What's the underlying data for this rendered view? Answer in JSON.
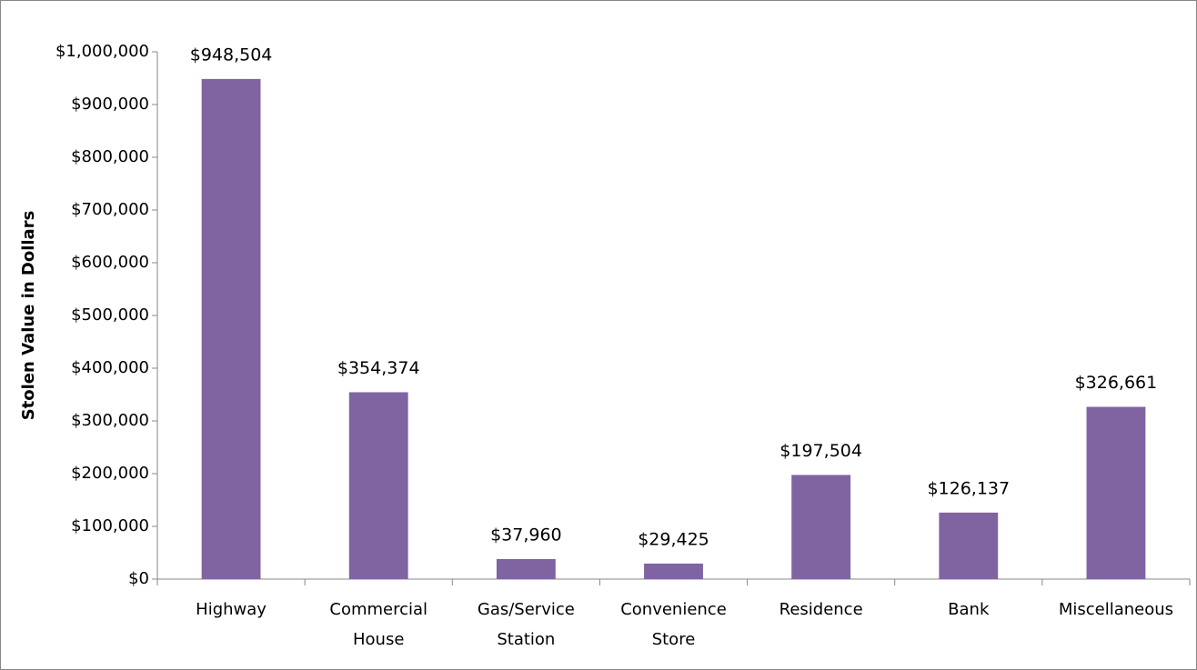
{
  "chart_data": {
    "type": "bar",
    "y_label": "Stolen Value in Dollars",
    "categories": [
      "Highway",
      "Commercial House",
      "Gas/Service Station",
      "Convenience Store",
      "Residence",
      "Bank",
      "Miscellaneous"
    ],
    "values": [
      948504,
      354374,
      37960,
      29425,
      197504,
      126137,
      326661
    ],
    "value_labels": [
      "$948,504",
      "$354,374",
      "$37,960",
      "$29,425",
      "$197,504",
      "$126,137",
      "$326,661"
    ],
    "color": "#8064a2",
    "ylim": [
      0,
      1000000
    ],
    "yticks": [
      {
        "value": 0,
        "label": "$0"
      },
      {
        "value": 100000,
        "label": "$100,000"
      },
      {
        "value": 200000,
        "label": "$200,000"
      },
      {
        "value": 300000,
        "label": "$300,000"
      },
      {
        "value": 400000,
        "label": "$400,000"
      },
      {
        "value": 500000,
        "label": "$500,000"
      },
      {
        "value": 600000,
        "label": "$600,000"
      },
      {
        "value": 700000,
        "label": "$700,000"
      },
      {
        "value": 800000,
        "label": "$800,000"
      },
      {
        "value": 900000,
        "label": "$900,000"
      },
      {
        "value": 1000000,
        "label": "$1,000,000"
      }
    ],
    "grid": false
  }
}
